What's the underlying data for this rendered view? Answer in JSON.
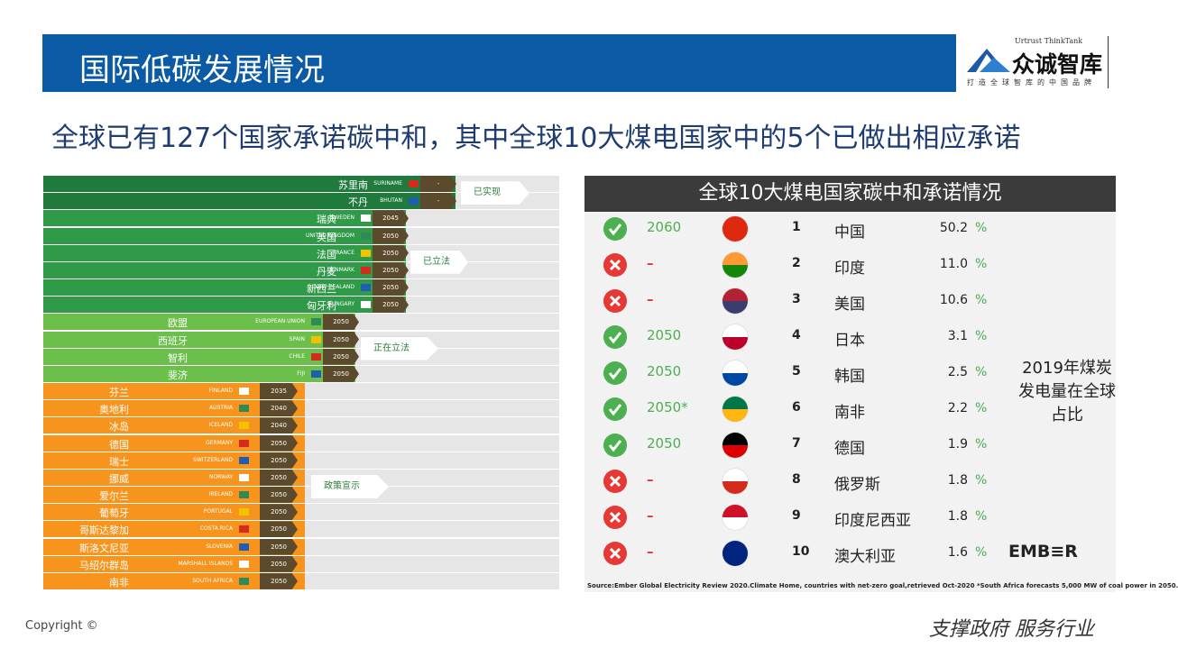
{
  "header": {
    "title": "国际低碳发展情况",
    "logo": {
      "brand_en": "Urtrust ThinkTank",
      "brand_cn": "众诚智库",
      "tagline": "打造全球智库的中国品牌"
    }
  },
  "headline": "全球已有127个国家承诺碳中和，其中全球10大煤电国家中的5个已做出相应承诺",
  "left_list": {
    "groups": [
      {
        "status": "已实现",
        "rows": [
          {
            "cn": "苏里南",
            "en": "SURINAME",
            "year": "-"
          },
          {
            "cn": "不丹",
            "en": "BHUTAN",
            "year": "-"
          }
        ]
      },
      {
        "status": "已立法",
        "rows": [
          {
            "cn": "瑞典",
            "en": "SWEDEN",
            "year": "2045"
          },
          {
            "cn": "英国",
            "en": "UNITED KINGDOM",
            "year": "2050"
          },
          {
            "cn": "法国",
            "en": "FRANCE",
            "year": "2050"
          },
          {
            "cn": "丹麦",
            "en": "DENMARK",
            "year": "2050"
          },
          {
            "cn": "新西兰",
            "en": "NEW ZEALAND",
            "year": "2050"
          },
          {
            "cn": "匈牙利",
            "en": "HUNGARY",
            "year": "2050"
          }
        ]
      },
      {
        "status": "正在立法",
        "rows": [
          {
            "cn": "欧盟",
            "en": "EUROPEAN UNION",
            "year": "2050"
          },
          {
            "cn": "西班牙",
            "en": "SPAIN",
            "year": "2050"
          },
          {
            "cn": "智利",
            "en": "CHILE",
            "year": "2050"
          },
          {
            "cn": "斐济",
            "en": "FIJI",
            "year": "2050"
          }
        ]
      },
      {
        "status": "政策宣示",
        "rows": [
          {
            "cn": "芬兰",
            "en": "FINLAND",
            "year": "2035"
          },
          {
            "cn": "奥地利",
            "en": "AUSTRIA",
            "year": "2040"
          },
          {
            "cn": "冰岛",
            "en": "ICELAND",
            "year": "2040"
          },
          {
            "cn": "德国",
            "en": "GERMANY",
            "year": "2050"
          },
          {
            "cn": "瑞士",
            "en": "SWITZERLAND",
            "year": "2050"
          },
          {
            "cn": "挪威",
            "en": "NORWAY",
            "year": "2050"
          },
          {
            "cn": "爱尔兰",
            "en": "IRELAND",
            "year": "2050"
          },
          {
            "cn": "葡萄牙",
            "en": "PORTUGAL",
            "year": "2050"
          },
          {
            "cn": "哥斯达黎加",
            "en": "COSTA RICA",
            "year": "2050"
          },
          {
            "cn": "斯洛文尼亚",
            "en": "SLOVENIA",
            "year": "2050"
          },
          {
            "cn": "马绍尔群岛",
            "en": "MARSHALL ISLANDS",
            "year": "2050"
          },
          {
            "cn": "南非",
            "en": "SOUTH AFRICA",
            "year": "2050"
          }
        ]
      }
    ]
  },
  "right_table": {
    "title": "全球10大煤电国家碳中和承诺情况",
    "share_unit": "%",
    "rows": [
      {
        "committed": true,
        "target": "2060",
        "rank": "1",
        "country": "中国",
        "share": "50.2"
      },
      {
        "committed": false,
        "target": "–",
        "rank": "2",
        "country": "印度",
        "share": "11.0"
      },
      {
        "committed": false,
        "target": "–",
        "rank": "3",
        "country": "美国",
        "share": "10.6"
      },
      {
        "committed": true,
        "target": "2050",
        "rank": "4",
        "country": "日本",
        "share": "3.1"
      },
      {
        "committed": true,
        "target": "2050",
        "rank": "5",
        "country": "韩国",
        "share": "2.5"
      },
      {
        "committed": true,
        "target": "2050*",
        "rank": "6",
        "country": "南非",
        "share": "2.2"
      },
      {
        "committed": true,
        "target": "2050",
        "rank": "7",
        "country": "德国",
        "share": "1.9"
      },
      {
        "committed": false,
        "target": "–",
        "rank": "8",
        "country": "俄罗斯",
        "share": "1.8"
      },
      {
        "committed": false,
        "target": "–",
        "rank": "9",
        "country": "印度尼西亚",
        "share": "1.8"
      },
      {
        "committed": false,
        "target": "–",
        "rank": "10",
        "country": "澳大利亚",
        "share": "1.6"
      }
    ],
    "side_note": "2019年煤炭发电量在全球占比",
    "source_brand": "EMB≡R",
    "source": "Source:Ember Global Electricity Review 2020.Climate Home, countries with net-zero goal,retrieved Oct-2020 *South Africa forecasts 5,000 MW of coal power in 2050."
  },
  "footer": {
    "copyright": "Copyright ©",
    "slogan": "支撑政府 服务行业"
  }
}
